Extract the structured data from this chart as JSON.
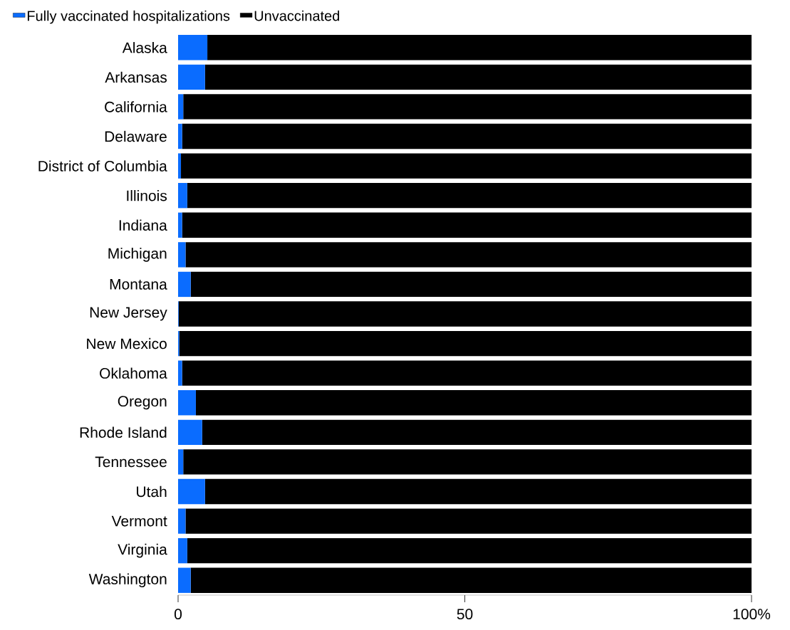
{
  "chart_data": {
    "type": "bar",
    "orientation": "horizontal",
    "stacked": true,
    "categories": [
      "Alaska",
      "Arkansas",
      "California",
      "Delaware",
      "District of Columbia",
      "Illinois",
      "Indiana",
      "Michigan",
      "Montana",
      "New Jersey",
      "New Mexico",
      "Oklahoma",
      "Oregon",
      "Rhode Island",
      "Tennessee",
      "Utah",
      "Vermont",
      "Virginia",
      "Washington"
    ],
    "series": [
      {
        "name": "Fully vaccinated hospitalizations",
        "color": "#0a6cff",
        "values": [
          5.1,
          4.7,
          0.9,
          0.7,
          0.5,
          1.6,
          0.7,
          1.3,
          2.2,
          0.1,
          0.2,
          0.7,
          3.1,
          4.2,
          0.9,
          4.7,
          1.3,
          1.6,
          2.2
        ]
      },
      {
        "name": "Unvaccinated",
        "color": "#000000",
        "values": [
          94.9,
          95.3,
          99.1,
          99.3,
          99.5,
          98.4,
          99.3,
          98.7,
          97.8,
          99.9,
          99.8,
          99.3,
          96.9,
          95.8,
          99.1,
          95.3,
          98.7,
          98.4,
          97.8
        ]
      }
    ],
    "xlim": [
      0,
      100
    ],
    "xticks": [
      0,
      50,
      {
        "value": 100,
        "label": "100%"
      }
    ],
    "legend": "top left"
  }
}
